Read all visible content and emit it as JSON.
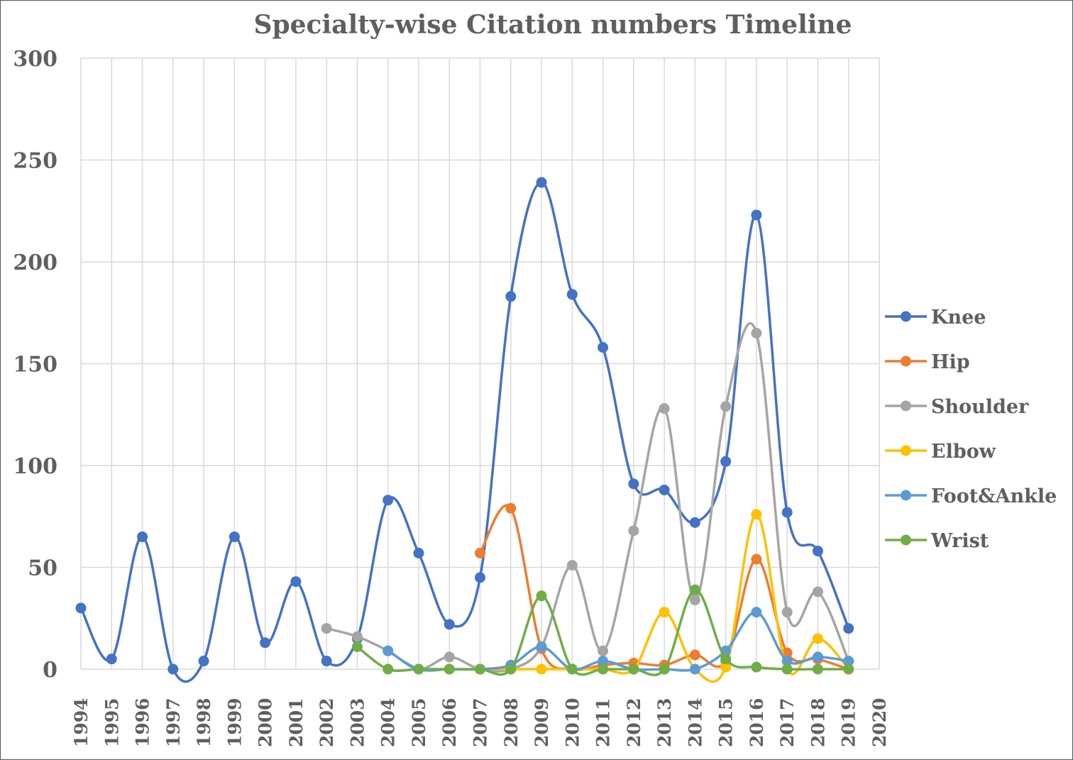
{
  "chart_data": {
    "type": "line",
    "title": "Specialty-wise Citation numbers Timeline",
    "xlabel": "",
    "ylabel": "",
    "x": [
      1994,
      1995,
      1996,
      1997,
      1998,
      1999,
      2000,
      2001,
      2002,
      2003,
      2004,
      2005,
      2006,
      2007,
      2008,
      2009,
      2010,
      2011,
      2012,
      2013,
      2014,
      2015,
      2016,
      2017,
      2018,
      2019
    ],
    "x_ticks": [
      "1994",
      "1995",
      "1996",
      "1997",
      "1998",
      "1999",
      "2000",
      "2001",
      "2002",
      "2003",
      "2004",
      "2005",
      "2006",
      "2007",
      "2008",
      "2009",
      "2010",
      "2011",
      "2012",
      "2013",
      "2014",
      "2015",
      "2016",
      "2017",
      "2018",
      "2019",
      "2020"
    ],
    "xlim": [
      1994,
      2020
    ],
    "ylim": [
      0,
      300
    ],
    "y_ticks": [
      "0",
      "50",
      "100",
      "150",
      "200",
      "250",
      "300"
    ],
    "grid": true,
    "legend_position": "right",
    "smooth": true,
    "series": [
      {
        "name": "Knee",
        "color": "#4472c4",
        "values": [
          30,
          5,
          65,
          0,
          4,
          65,
          13,
          43,
          4,
          15,
          83,
          57,
          22,
          45,
          183,
          239,
          184,
          158,
          91,
          88,
          72,
          102,
          223,
          77,
          58,
          20
        ]
      },
      {
        "name": "Hip",
        "color": "#ed7d31",
        "values": [
          null,
          null,
          null,
          null,
          null,
          null,
          null,
          null,
          null,
          null,
          null,
          null,
          null,
          57,
          79,
          10,
          0,
          2,
          3,
          2,
          7,
          4,
          54,
          8,
          5,
          0
        ]
      },
      {
        "name": "Shoulder",
        "color": "#a5a5a5",
        "values": [
          null,
          null,
          null,
          null,
          null,
          null,
          null,
          null,
          20,
          16,
          9,
          0,
          6,
          0,
          0,
          11,
          51,
          9,
          68,
          128,
          34,
          129,
          165,
          28,
          38,
          4
        ]
      },
      {
        "name": "Elbow",
        "color": "#ffc000",
        "values": [
          null,
          null,
          null,
          null,
          null,
          null,
          null,
          null,
          null,
          null,
          null,
          null,
          null,
          0,
          0,
          0,
          0,
          0,
          0,
          28,
          0,
          1,
          76,
          0,
          15,
          0
        ]
      },
      {
        "name": "Foot&Ankle",
        "color": "#5b9bd5",
        "values": [
          null,
          null,
          null,
          null,
          null,
          null,
          null,
          null,
          null,
          null,
          9,
          0,
          0,
          0,
          2,
          11,
          0,
          4,
          0,
          0,
          0,
          9,
          28,
          4,
          6,
          4
        ]
      },
      {
        "name": "Wrist",
        "color": "#70ad47",
        "values": [
          null,
          null,
          null,
          null,
          null,
          null,
          null,
          null,
          null,
          11,
          0,
          0,
          0,
          0,
          0,
          36,
          0,
          0,
          0,
          0,
          39,
          5,
          1,
          0,
          0,
          0
        ]
      }
    ]
  }
}
